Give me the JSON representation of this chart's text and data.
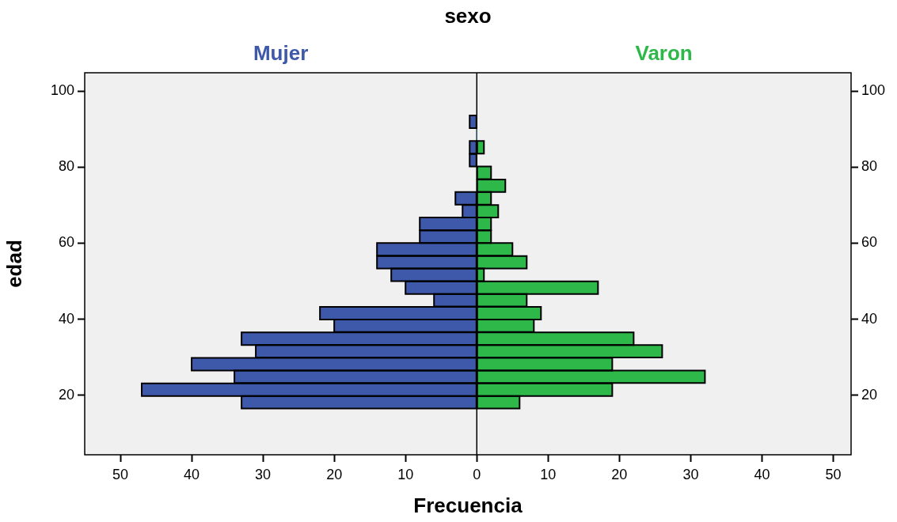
{
  "chart_data": {
    "type": "bar",
    "orientation": "horizontal",
    "legend_title": "sexo",
    "xlabel": "Frecuencia",
    "ylabel": "edad",
    "x": [
      18.2,
      21.5,
      24.9,
      28.2,
      31.6,
      34.9,
      38.3,
      41.6,
      45,
      48.3,
      51.7,
      55,
      58.4,
      61.7,
      65.1,
      68.4,
      71.8,
      75.1,
      78.5,
      81.8,
      85.2,
      88.5,
      91.9
    ],
    "series": [
      {
        "name": "Mujer",
        "color": "#3f59aa",
        "values": [
          -33,
          -47,
          -34,
          -40,
          -31,
          -33,
          -20,
          -22,
          -6,
          -10,
          -12,
          -14,
          -14,
          -8,
          -8,
          -2,
          -3,
          0,
          0,
          -1,
          -1,
          0,
          -1
        ]
      },
      {
        "name": "Varon",
        "color": "#2eb84a",
        "values": [
          6,
          19,
          32,
          19,
          26,
          22,
          8,
          9,
          7,
          17,
          1,
          7,
          5,
          2,
          2,
          3,
          2,
          4,
          2,
          0,
          1,
          0,
          0
        ]
      }
    ],
    "xlim": [
      -55,
      52.5
    ],
    "xticks": [
      {
        "value": -50,
        "label": "50"
      },
      {
        "value": -40,
        "label": "40"
      },
      {
        "value": -30,
        "label": "30"
      },
      {
        "value": -20,
        "label": "20"
      },
      {
        "value": -10,
        "label": "10"
      },
      0,
      10,
      20,
      30,
      40,
      50
    ],
    "ylim": [
      4.4,
      104.8
    ],
    "yticks": [
      20,
      40,
      60,
      80,
      100
    ],
    "y2lim": [
      4.4,
      104.8
    ],
    "y2ticks": [
      20,
      40,
      60,
      80,
      100
    ],
    "legend": "top",
    "stacked": true
  }
}
